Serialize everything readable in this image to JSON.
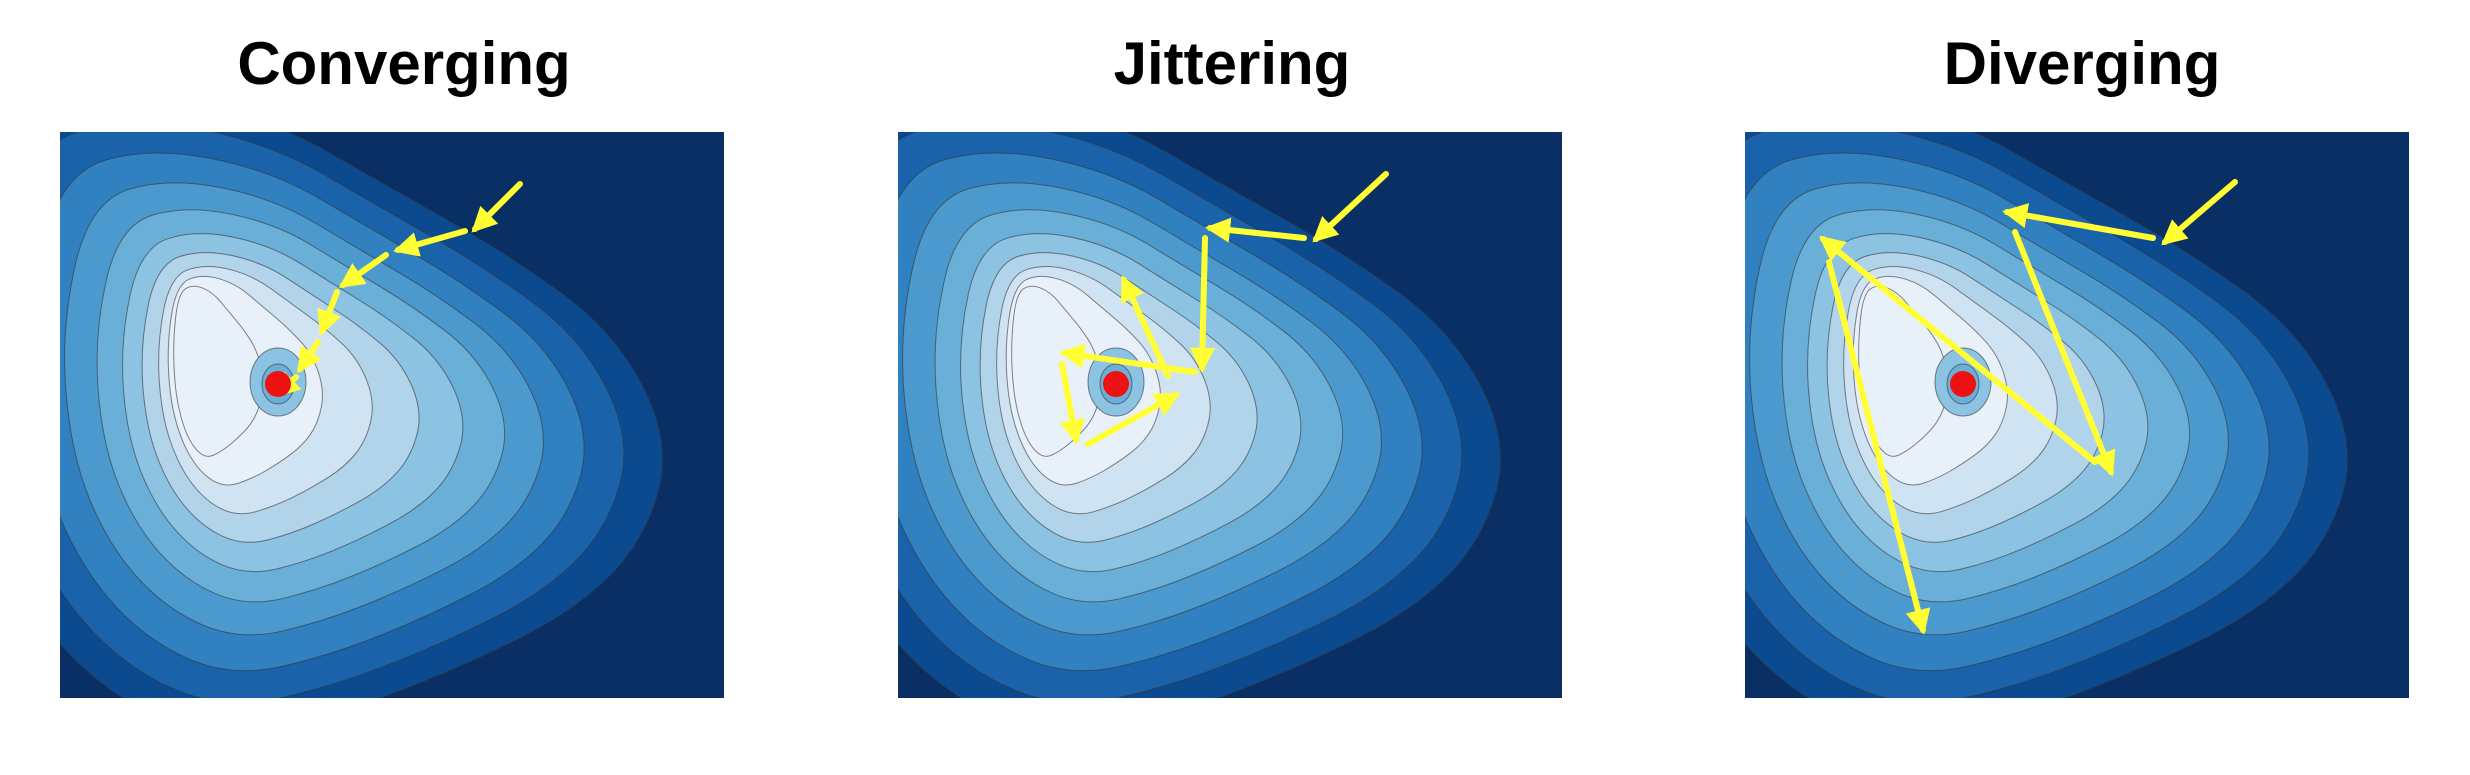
{
  "panels": [
    {
      "key": "converging",
      "title": "Converging"
    },
    {
      "key": "jittering",
      "title": "Jittering"
    },
    {
      "key": "diverging",
      "title": "Diverging"
    }
  ],
  "colors": {
    "levels": [
      "#0a2f64",
      "#0c4a8f",
      "#1a63aa",
      "#3180bf",
      "#4c9acd",
      "#6aafd8",
      "#8cc2e2",
      "#b2d4ea",
      "#d0e3f2",
      "#e8f1fa"
    ],
    "minimum_marker": "#ee1111",
    "arrow": "#ffff33",
    "contour_line": "#333333"
  }
}
